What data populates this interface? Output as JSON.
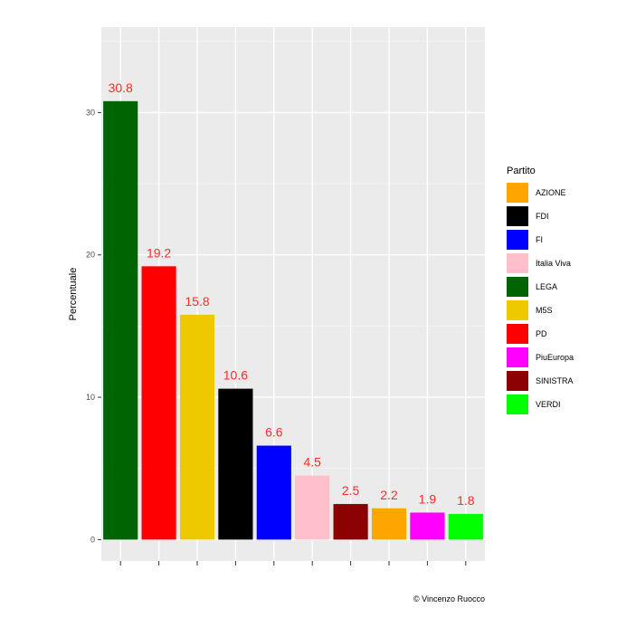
{
  "chart_data": {
    "type": "bar",
    "ylabel": "Percentuale",
    "xlabel": "",
    "ylim": [
      -1.5,
      36
    ],
    "yticks": [
      0,
      10,
      20,
      30
    ],
    "grid": true,
    "legend_position": "right",
    "label_color": "#ff2a2a",
    "panel_color": "#ebebeb",
    "bars": [
      {
        "party": "LEGA",
        "value": 30.8,
        "label": "30.8",
        "color": "#006400"
      },
      {
        "party": "PD",
        "value": 19.2,
        "label": "19.2",
        "color": "#ff0000"
      },
      {
        "party": "M5S",
        "value": 15.8,
        "label": "15.8",
        "color": "#eec900"
      },
      {
        "party": "FDI",
        "value": 10.6,
        "label": "10.6",
        "color": "#000000"
      },
      {
        "party": "FI",
        "value": 6.6,
        "label": "6.6",
        "color": "#0000ff"
      },
      {
        "party": "Italia Viva",
        "value": 4.5,
        "label": "4.5",
        "color": "#ffc0cb"
      },
      {
        "party": "SINISTRA",
        "value": 2.5,
        "label": "2.5",
        "color": "#8b0000"
      },
      {
        "party": "AZIONE",
        "value": 2.2,
        "label": "2.2",
        "color": "#ffa500"
      },
      {
        "party": "PiuEuropa",
        "value": 1.9,
        "label": "1.9",
        "color": "#ff00ff"
      },
      {
        "party": "VERDI",
        "value": 1.8,
        "label": "1.8",
        "color": "#00ff00"
      }
    ],
    "legend": {
      "title": "Partito",
      "items": [
        {
          "label": "AZIONE",
          "color": "#ffa500"
        },
        {
          "label": "FDI",
          "color": "#000000"
        },
        {
          "label": "FI",
          "color": "#0000ff"
        },
        {
          "label": "Italia Viva",
          "color": "#ffc0cb"
        },
        {
          "label": "LEGA",
          "color": "#006400"
        },
        {
          "label": "M5S",
          "color": "#eec900"
        },
        {
          "label": "PD",
          "color": "#ff0000"
        },
        {
          "label": "PiuEuropa",
          "color": "#ff00ff"
        },
        {
          "label": "SINISTRA",
          "color": "#8b0000"
        },
        {
          "label": "VERDI",
          "color": "#00ff00"
        }
      ]
    },
    "caption": "© Vincenzo Ruocco"
  }
}
